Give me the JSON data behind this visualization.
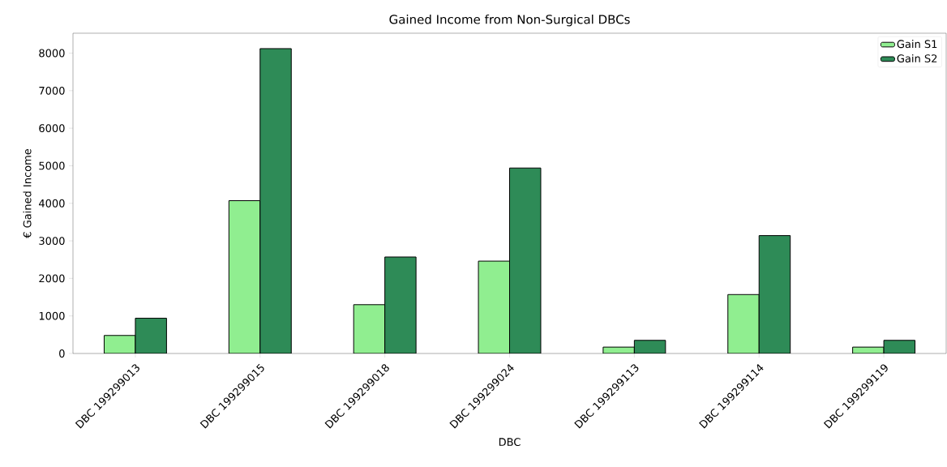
{
  "chart_data": {
    "type": "bar",
    "title": "Gained Income from Non-Surgical DBCs",
    "xlabel": "DBC",
    "ylabel": "€ Gained Income",
    "categories": [
      "DBC 199299013",
      "DBC 199299015",
      "DBC 199299018",
      "DBC 199299024",
      "DBC 199299113",
      "DBC 199299114",
      "DBC 199299119"
    ],
    "series": [
      {
        "name": "Gain S1",
        "color": "#90ee90",
        "values": [
          480,
          4070,
          1300,
          2460,
          170,
          1570,
          170
        ]
      },
      {
        "name": "Gain S2",
        "color": "#2e8b57",
        "values": [
          940,
          8120,
          2570,
          4940,
          350,
          3140,
          350
        ]
      }
    ],
    "ylim": [
      0,
      8530
    ],
    "yticks": [
      0,
      1000,
      2000,
      3000,
      4000,
      5000,
      6000,
      7000,
      8000
    ],
    "grid": false,
    "legend": "top right"
  }
}
